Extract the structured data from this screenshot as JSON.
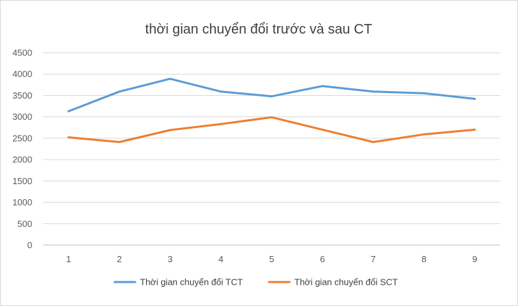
{
  "chart_data": {
    "type": "line",
    "title": "thời gian chuyển đổi trước và sau CT",
    "xlabel": "",
    "ylabel": "",
    "categories": [
      "1",
      "2",
      "3",
      "4",
      "5",
      "6",
      "7",
      "8",
      "9"
    ],
    "y_ticks": [
      "0",
      "500",
      "1000",
      "1500",
      "2000",
      "2500",
      "3000",
      "3500",
      "4000",
      "4500"
    ],
    "ylim": [
      0,
      4500
    ],
    "grid": true,
    "legend_position": "bottom",
    "series": [
      {
        "name": "Thời gian chuyển đổi TCT",
        "color": "#5b9bd5",
        "values": [
          3130,
          3590,
          3890,
          3590,
          3480,
          3720,
          3590,
          3550,
          3420
        ]
      },
      {
        "name": "Thời gian chuyển đổi SCT",
        "color": "#ed7d31",
        "values": [
          2520,
          2410,
          2690,
          2830,
          2990,
          2700,
          2410,
          2590,
          2700
        ]
      }
    ]
  }
}
